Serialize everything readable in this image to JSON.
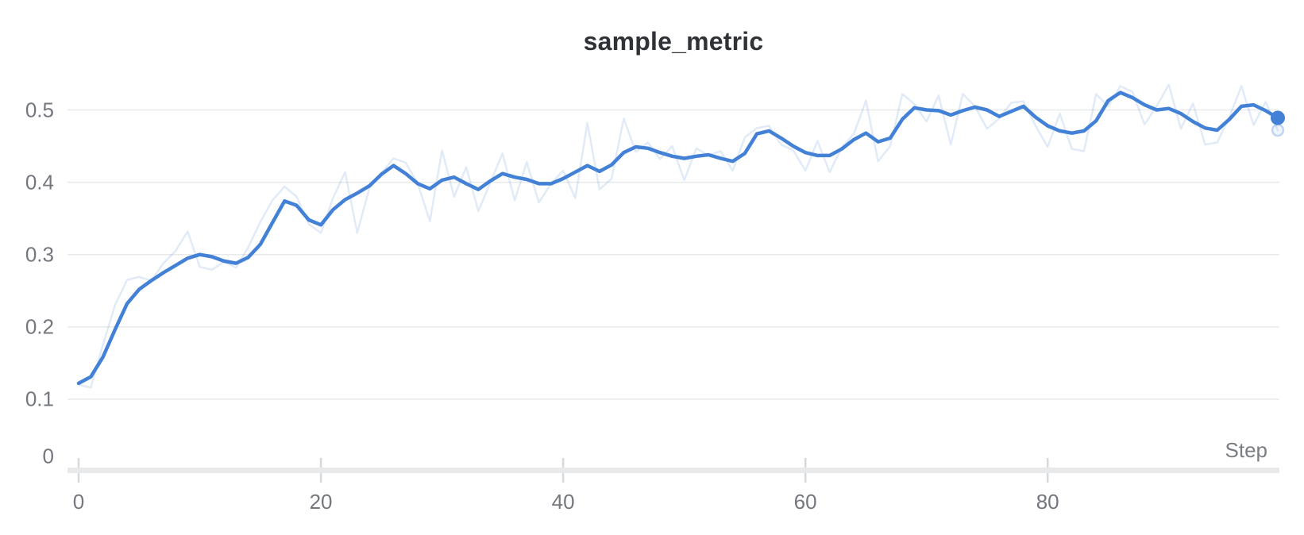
{
  "panel": {
    "background": "#ffffff"
  },
  "chart_data": {
    "type": "line",
    "title": "sample_metric",
    "xlabel": "Step",
    "ylabel": "",
    "x_range": [
      0,
      99
    ],
    "ylim": [
      0,
      0.56
    ],
    "x_ticks": [
      0,
      20,
      40,
      60,
      80
    ],
    "y_ticks": [
      0,
      0.1,
      0.2,
      0.3,
      0.4,
      0.5
    ],
    "grid": "horizontal",
    "legend_position": "none",
    "series": [
      {
        "name": "sample_metric (raw)",
        "role": "raw",
        "color": "#4281d6",
        "opacity": 0.16,
        "line_width": 2.5,
        "values": [
          0.12,
          0.116,
          0.175,
          0.23,
          0.265,
          0.269,
          0.264,
          0.288,
          0.305,
          0.332,
          0.283,
          0.279,
          0.29,
          0.282,
          0.31,
          0.345,
          0.375,
          0.394,
          0.38,
          0.342,
          0.33,
          0.378,
          0.414,
          0.33,
          0.392,
          0.413,
          0.433,
          0.427,
          0.398,
          0.346,
          0.444,
          0.38,
          0.421,
          0.36,
          0.4,
          0.44,
          0.375,
          0.428,
          0.372,
          0.398,
          0.416,
          0.378,
          0.482,
          0.39,
          0.405,
          0.488,
          0.442,
          0.455,
          0.432,
          0.45,
          0.403,
          0.447,
          0.437,
          0.443,
          0.416,
          0.462,
          0.475,
          0.478,
          0.452,
          0.444,
          0.416,
          0.457,
          0.414,
          0.448,
          0.467,
          0.513,
          0.429,
          0.45,
          0.522,
          0.508,
          0.484,
          0.52,
          0.452,
          0.522,
          0.505,
          0.474,
          0.488,
          0.51,
          0.512,
          0.478,
          0.449,
          0.495,
          0.446,
          0.443,
          0.522,
          0.505,
          0.533,
          0.525,
          0.48,
          0.505,
          0.535,
          0.474,
          0.509,
          0.452,
          0.455,
          0.49,
          0.533,
          0.479,
          0.511,
          0.472
        ]
      },
      {
        "name": "sample_metric (smoothed)",
        "role": "smoothed",
        "color": "#4281d6",
        "opacity": 1,
        "line_width": 4.5,
        "values": [
          0.122,
          0.131,
          0.158,
          0.196,
          0.232,
          0.252,
          0.264,
          0.275,
          0.285,
          0.295,
          0.3,
          0.297,
          0.291,
          0.288,
          0.296,
          0.314,
          0.344,
          0.374,
          0.368,
          0.348,
          0.341,
          0.362,
          0.376,
          0.385,
          0.395,
          0.411,
          0.423,
          0.412,
          0.398,
          0.391,
          0.403,
          0.407,
          0.398,
          0.39,
          0.402,
          0.412,
          0.407,
          0.404,
          0.398,
          0.398,
          0.405,
          0.414,
          0.423,
          0.415,
          0.424,
          0.441,
          0.449,
          0.447,
          0.441,
          0.436,
          0.433,
          0.436,
          0.438,
          0.433,
          0.429,
          0.44,
          0.467,
          0.471,
          0.461,
          0.45,
          0.441,
          0.437,
          0.437,
          0.446,
          0.459,
          0.468,
          0.456,
          0.461,
          0.487,
          0.503,
          0.5,
          0.499,
          0.493,
          0.499,
          0.504,
          0.5,
          0.491,
          0.498,
          0.505,
          0.49,
          0.478,
          0.471,
          0.468,
          0.471,
          0.485,
          0.513,
          0.524,
          0.517,
          0.507,
          0.5,
          0.502,
          0.495,
          0.484,
          0.475,
          0.472,
          0.487,
          0.505,
          0.507,
          0.499,
          0.489
        ]
      }
    ],
    "end_markers": {
      "smoothed_value": 0.489,
      "raw_value": 0.472,
      "step": 99
    }
  },
  "colors": {
    "line_blue": "#4281d6",
    "grid_line": "#e8e9ea",
    "axis_bar": "#e8e9eb",
    "axis_tick": "#d6d8db",
    "tick_label": "#74777e",
    "step_label": "#7a7d84",
    "title_text": "#2f3338"
  }
}
